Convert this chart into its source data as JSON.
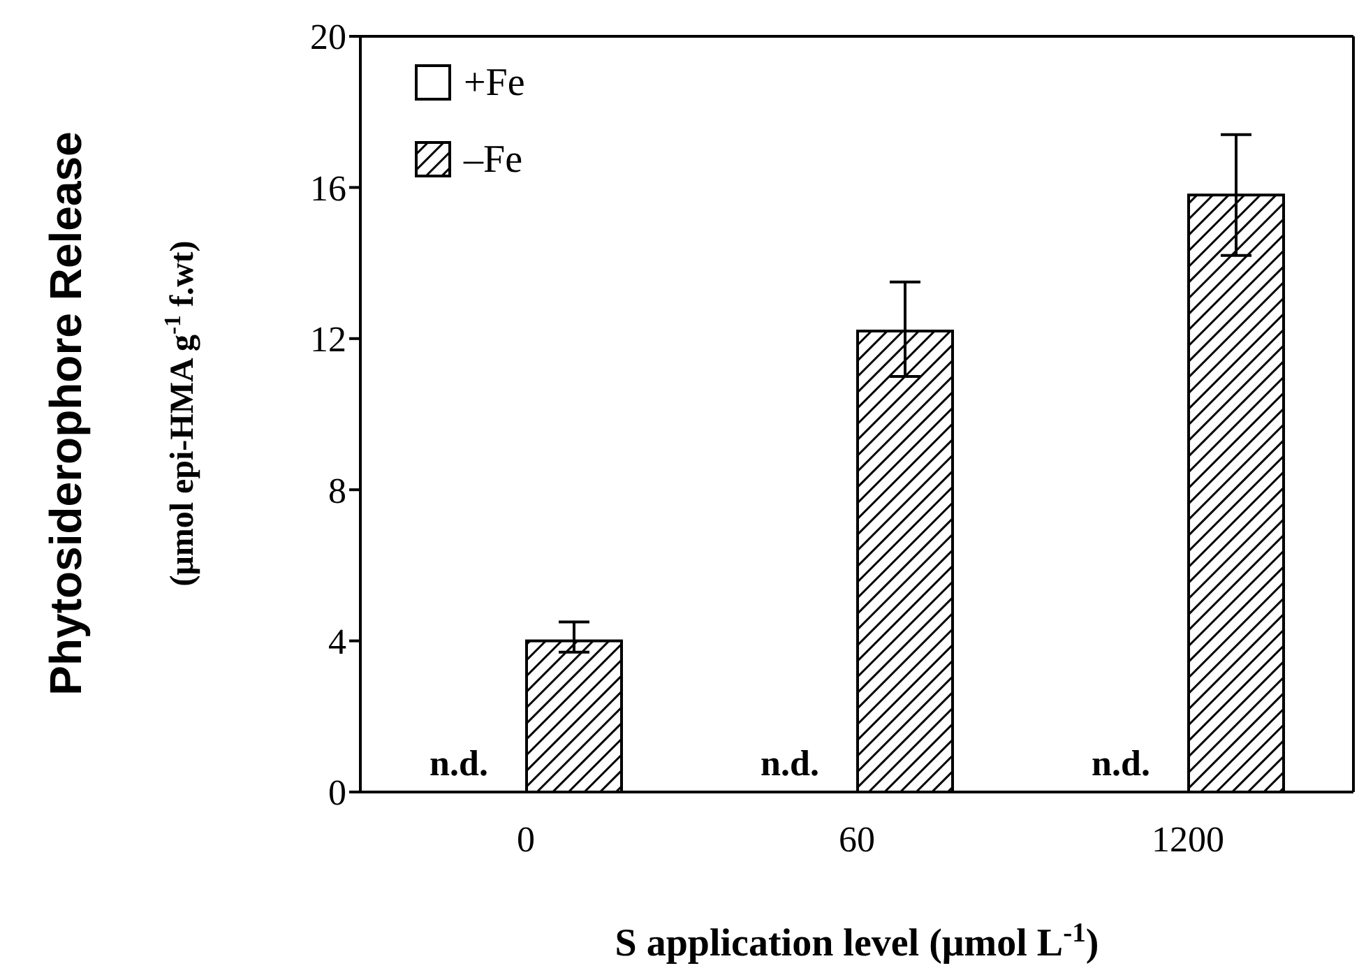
{
  "chart_data": {
    "type": "bar",
    "xlabel": "S application level (μmol L$^{-1}$)",
    "ylabel": "Phytosiderophore Release\n(μmol epi-HMA g$^{-1}$ f.wt)",
    "categories": [
      "0",
      "60",
      "1200"
    ],
    "series": [
      {
        "name": "+Fe",
        "color": "#ffffff",
        "values": [
          null,
          null,
          null
        ],
        "value_labels": [
          "n.d.",
          "n.d.",
          "n.d."
        ]
      },
      {
        "name": "–Fe",
        "color": "#000000",
        "values": [
          4.0,
          12.2,
          15.8
        ],
        "errors": [
          [
            3.7,
            4.5
          ],
          [
            11.0,
            13.5
          ],
          [
            14.2,
            17.4
          ]
        ]
      }
    ],
    "ylim": [
      0,
      20
    ],
    "yticks": [
      0,
      4,
      8,
      12,
      16,
      20
    ],
    "grid": false,
    "legend": "top left"
  }
}
